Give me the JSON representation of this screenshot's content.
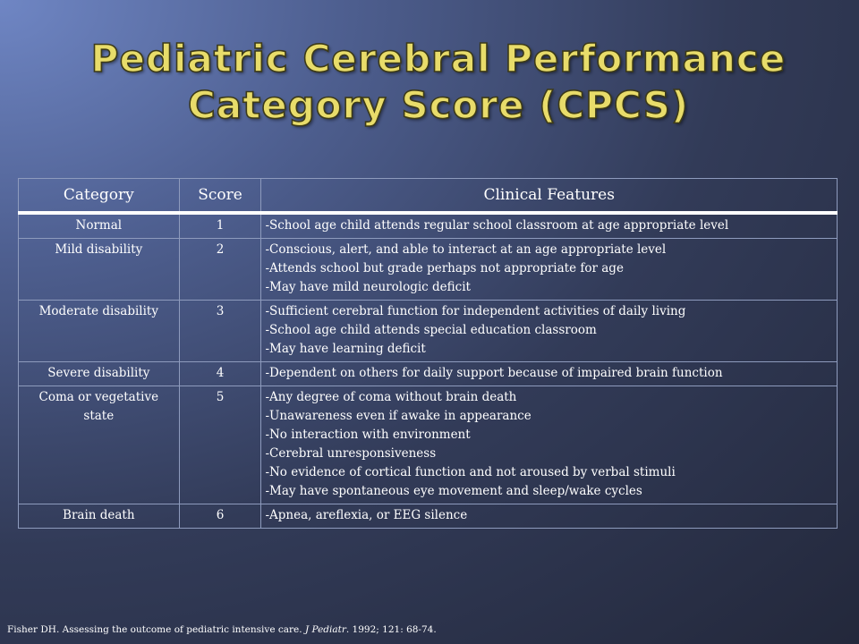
{
  "title": {
    "line1": "Pediatric Cerebral Performance",
    "line2": "Category Score (CPCS)"
  },
  "table": {
    "headers": [
      "Category",
      "Score",
      "Clinical Features"
    ],
    "rows": [
      {
        "category": "Normal",
        "score": "1",
        "features": [
          "-School age child attends regular school classroom at age appropriate level"
        ]
      },
      {
        "category": "Mild disability",
        "score": "2",
        "features": [
          "-Conscious, alert, and able to interact at an age appropriate level",
          "-Attends school but grade perhaps not appropriate for age",
          "-May have mild neurologic deficit"
        ]
      },
      {
        "category": "Moderate disability",
        "score": "3",
        "features": [
          "-Sufficient cerebral function for independent activities of daily living",
          "-School age child attends special education classroom",
          "-May have learning deficit"
        ]
      },
      {
        "category": "Severe disability",
        "score": "4",
        "features": [
          "-Dependent on others for daily support because of impaired brain function"
        ]
      },
      {
        "category": "Coma or vegetative state",
        "score": "5",
        "features": [
          "-Any degree of coma without brain death",
          "-Unawareness even if awake in appearance",
          "-No interaction with environment",
          "-Cerebral unresponsiveness",
          "-No evidence of cortical function and not aroused by verbal stimuli",
          "-May have spontaneous eye movement and sleep/wake cycles"
        ]
      },
      {
        "category": "Brain death",
        "score": "6",
        "features": [
          "-Apnea, areflexia, or EEG silence"
        ]
      }
    ]
  },
  "citation": {
    "before": "Fisher DH.  Assessing the outcome of pediatric intensive care.",
    "journal": "J Pediatr",
    "after": ".  1992; 121:  68-74."
  }
}
